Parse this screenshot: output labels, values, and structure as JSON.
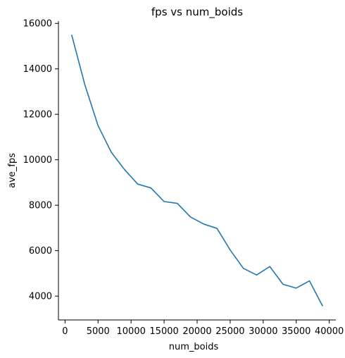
{
  "chart_data": {
    "type": "line",
    "title": "fps vs num_boids",
    "xlabel": "num_boids",
    "ylabel": "ave_fps",
    "xlim": [
      -1000,
      41000
    ],
    "ylim": [
      2950,
      16100
    ],
    "xticks": [
      0,
      5000,
      10000,
      15000,
      20000,
      25000,
      30000,
      35000,
      40000
    ],
    "yticks": [
      4000,
      6000,
      8000,
      10000,
      12000,
      14000,
      16000
    ],
    "grid": false,
    "line_color": "#1f77b4",
    "series": [
      {
        "x": [
          1000,
          3000,
          5000,
          7000,
          9000,
          11000,
          13000,
          15000,
          17000,
          19000,
          21000,
          23000,
          25000,
          27000,
          29000,
          31000,
          33000,
          35000,
          37000,
          39000
        ],
        "y": [
          15500,
          13300,
          11500,
          10330,
          9570,
          8930,
          8760,
          8160,
          8080,
          7480,
          7170,
          6980,
          6030,
          5220,
          4930,
          5300,
          4520,
          4350,
          4670,
          3560
        ]
      }
    ]
  }
}
